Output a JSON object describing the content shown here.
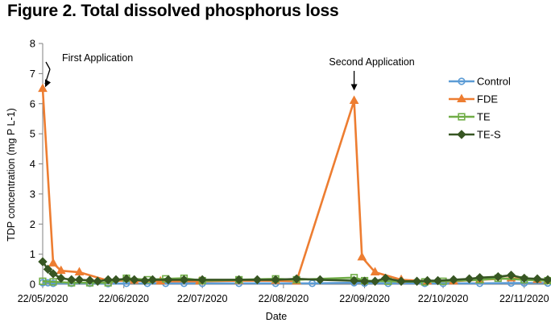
{
  "figure_title": "Figure 2. Total dissolved phosphorus loss",
  "chart_data": {
    "type": "line",
    "title": "",
    "xlabel": "Date",
    "ylabel": "TDP concentration (mg P L-1)",
    "ylim": [
      0,
      8
    ],
    "yticks": [
      0,
      1,
      2,
      3,
      4,
      5,
      6,
      7,
      8
    ],
    "xlim": [
      "2020-05-22",
      "2020-12-01"
    ],
    "xticks": [
      "2020-05-22",
      "2020-06-22",
      "2020-07-22",
      "2020-08-22",
      "2020-09-22",
      "2020-10-22",
      "2020-11-22"
    ],
    "xtick_labels": [
      "22/05/2020",
      "22/06/2020",
      "22/07/2020",
      "22/08/2020",
      "22/09/2020",
      "22/10/2020",
      "22/11/2020"
    ],
    "grid": false,
    "legend": "right",
    "colors": {
      "Control": "#5b9bd5",
      "FDE": "#ed7d31",
      "TE": "#70ad47",
      "TE-S": "#375623",
      "axis": "#808080"
    },
    "annotations": [
      {
        "text": "First  Application",
        "x": "2020-05-22",
        "y": 6.6
      },
      {
        "text": "Second  Application",
        "x": "2020-09-18",
        "y": 6.3
      }
    ],
    "series": [
      {
        "name": "Control",
        "marker": "circle",
        "x": [
          "2020-05-22",
          "2020-05-24",
          "2020-05-26",
          "2020-06-02",
          "2020-06-09",
          "2020-06-16",
          "2020-06-23",
          "2020-07-01",
          "2020-07-08",
          "2020-07-15",
          "2020-07-22",
          "2020-08-05",
          "2020-08-19",
          "2020-09-02",
          "2020-09-18",
          "2020-09-22",
          "2020-10-01",
          "2020-10-15",
          "2020-10-22",
          "2020-11-05",
          "2020-11-17",
          "2020-11-22",
          "2020-12-01"
        ],
        "y": [
          0.05,
          0.05,
          0.03,
          0.03,
          0.03,
          0.02,
          0.03,
          0.03,
          0.03,
          0.03,
          0.03,
          0.03,
          0.03,
          0.03,
          0.05,
          0.04,
          0.03,
          0.03,
          0.03,
          0.03,
          0.04,
          0.04,
          0.04
        ]
      },
      {
        "name": "FDE",
        "marker": "triangle",
        "x": [
          "2020-05-22",
          "2020-05-26",
          "2020-05-29",
          "2020-06-05",
          "2020-06-16",
          "2020-06-26",
          "2020-07-06",
          "2020-07-21",
          "2020-08-05",
          "2020-08-19",
          "2020-08-27",
          "2020-09-18",
          "2020-09-21",
          "2020-09-26",
          "2020-10-06",
          "2020-10-16",
          "2020-10-26",
          "2020-11-05",
          "2020-11-17",
          "2020-11-27",
          "2020-12-01"
        ],
        "y": [
          6.5,
          0.7,
          0.45,
          0.4,
          0.12,
          0.12,
          0.1,
          0.1,
          0.12,
          0.12,
          0.1,
          6.1,
          0.9,
          0.4,
          0.15,
          0.1,
          0.1,
          0.15,
          0.2,
          0.15,
          0.12
        ]
      },
      {
        "name": "TE",
        "marker": "square",
        "x": [
          "2020-05-22",
          "2020-05-26",
          "2020-06-02",
          "2020-06-09",
          "2020-06-16",
          "2020-06-23",
          "2020-07-01",
          "2020-07-08",
          "2020-07-15",
          "2020-07-22",
          "2020-08-05",
          "2020-08-19",
          "2020-08-27",
          "2020-09-18",
          "2020-09-22",
          "2020-10-01",
          "2020-10-15",
          "2020-10-22",
          "2020-11-05",
          "2020-11-12",
          "2020-11-22",
          "2020-12-01"
        ],
        "y": [
          0.1,
          0.08,
          0.05,
          0.05,
          0.05,
          0.2,
          0.15,
          0.18,
          0.2,
          0.12,
          0.15,
          0.18,
          0.15,
          0.22,
          0.12,
          0.1,
          0.08,
          0.1,
          0.15,
          0.2,
          0.15,
          0.12
        ]
      },
      {
        "name": "TE-S",
        "marker": "diamond",
        "x": [
          "2020-05-22",
          "2020-05-24",
          "2020-05-26",
          "2020-05-29",
          "2020-06-02",
          "2020-06-05",
          "2020-06-09",
          "2020-06-12",
          "2020-06-16",
          "2020-06-19",
          "2020-06-23",
          "2020-06-26",
          "2020-06-30",
          "2020-07-03",
          "2020-07-09",
          "2020-07-15",
          "2020-07-22",
          "2020-08-05",
          "2020-08-12",
          "2020-08-19",
          "2020-08-27",
          "2020-09-05",
          "2020-09-18",
          "2020-09-22",
          "2020-09-26",
          "2020-09-30",
          "2020-10-06",
          "2020-10-12",
          "2020-10-16",
          "2020-10-20",
          "2020-10-26",
          "2020-11-01",
          "2020-11-05",
          "2020-11-12",
          "2020-11-17",
          "2020-11-22",
          "2020-11-27",
          "2020-12-01"
        ],
        "y": [
          0.75,
          0.5,
          0.35,
          0.2,
          0.15,
          0.15,
          0.13,
          0.1,
          0.15,
          0.15,
          0.18,
          0.15,
          0.12,
          0.15,
          0.15,
          0.15,
          0.15,
          0.15,
          0.15,
          0.15,
          0.18,
          0.15,
          0.12,
          0.1,
          0.1,
          0.2,
          0.1,
          0.1,
          0.12,
          0.12,
          0.15,
          0.18,
          0.22,
          0.25,
          0.3,
          0.2,
          0.18,
          0.15
        ]
      }
    ]
  }
}
